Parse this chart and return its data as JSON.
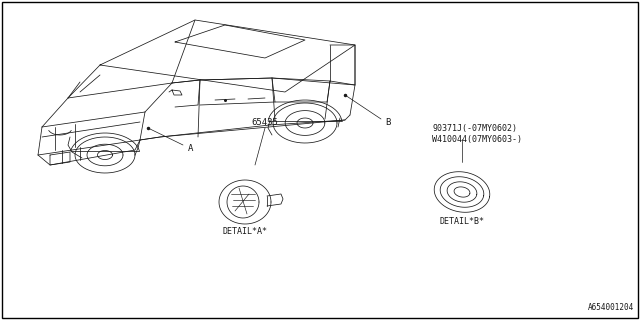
{
  "bg_color": "#ffffff",
  "border_color": "#000000",
  "line_color": "#1a1a1a",
  "text_color": "#1a1a1a",
  "label_A": "A",
  "label_B": "B",
  "part_number_1": "65435",
  "part_number_2a": "90371J(-07MY0602)",
  "part_number_2b": "W410044(07MY0603-)",
  "detail_A_label": "DETAIL*A*",
  "detail_B_label": "DETAIL*B*",
  "ref_number": "A654001204"
}
